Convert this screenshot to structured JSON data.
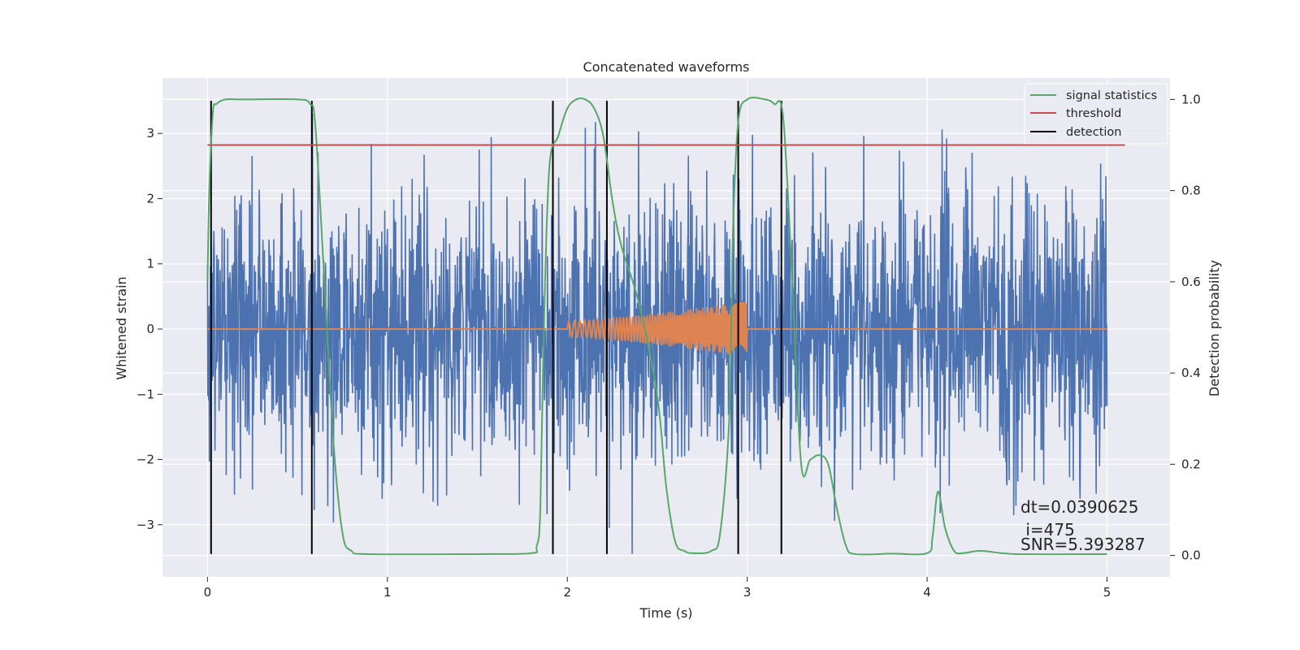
{
  "chart_data": {
    "type": "line",
    "title": "Concatenated waveforms",
    "xlabel": "Time (s)",
    "ylabel_left": "Whitened strain",
    "ylabel_right": "Detection probability",
    "xlim": [
      -0.25,
      5.35
    ],
    "ylim_left": [
      -3.8,
      3.85
    ],
    "ylim_right": [
      -0.047,
      1.047
    ],
    "x_ticks": [
      0,
      1,
      2,
      3,
      4,
      5
    ],
    "y_left_ticks": [
      -3,
      -2,
      -1,
      0,
      1,
      2,
      3
    ],
    "y_right_ticks": [
      0.0,
      0.2,
      0.4,
      0.6,
      0.8,
      1.0
    ],
    "y_right_tick_labels": [
      "0.0",
      "0.2",
      "0.4",
      "0.6",
      "0.8",
      "1.0"
    ],
    "grid": true,
    "legend_position": "top-right",
    "colors": {
      "background": "#eaeaf2",
      "grid": "#ffffff",
      "strain": "#4c72b0",
      "template": "#dd8452",
      "signal_statistics": "#55a868",
      "threshold": "#c44e52",
      "detection": "#000000"
    },
    "series": [
      {
        "name": "",
        "axis": "left",
        "kind": "whitened_strain_noise",
        "x_range": [
          0,
          5
        ],
        "amplitude_sigma": 1.05,
        "peak_max": 3.3,
        "peak_min": -3.45
      },
      {
        "name": "",
        "axis": "left",
        "kind": "injected_chirp",
        "x_range": [
          0,
          5
        ],
        "chirp_start": 2.0,
        "chirp_end": 3.0,
        "amplitude_start": 0.12,
        "amplitude_end": 0.43
      },
      {
        "name": "signal statistics",
        "axis": "right",
        "x": [
          0.0,
          0.01,
          0.03,
          0.05,
          0.1,
          0.2,
          0.5,
          0.57,
          0.6,
          0.65,
          0.7,
          0.75,
          0.8,
          0.9,
          1.5,
          1.8,
          1.83,
          1.85,
          1.87,
          1.9,
          1.95,
          2.0,
          2.05,
          2.1,
          2.15,
          2.2,
          2.25,
          2.3,
          2.4,
          2.5,
          2.55,
          2.6,
          2.65,
          2.7,
          2.8,
          2.85,
          2.9,
          2.92,
          2.95,
          3.0,
          3.1,
          3.15,
          3.2,
          3.25,
          3.3,
          3.35,
          3.4,
          3.45,
          3.5,
          3.55,
          3.6,
          3.8,
          4.0,
          4.03,
          4.06,
          4.1,
          4.15,
          4.2,
          4.3,
          4.5,
          5.0
        ],
        "values": [
          0.6,
          0.8,
          0.97,
          0.99,
          1.0,
          1.0,
          1.0,
          0.99,
          0.94,
          0.6,
          0.25,
          0.05,
          0.01,
          0.003,
          0.003,
          0.005,
          0.02,
          0.1,
          0.5,
          0.85,
          0.92,
          0.98,
          1.0,
          1.0,
          0.98,
          0.92,
          0.78,
          0.68,
          0.55,
          0.35,
          0.15,
          0.03,
          0.01,
          0.005,
          0.01,
          0.05,
          0.3,
          0.7,
          0.95,
          1.0,
          1.0,
          0.99,
          0.96,
          0.6,
          0.2,
          0.21,
          0.22,
          0.2,
          0.1,
          0.02,
          0.003,
          0.004,
          0.005,
          0.04,
          0.14,
          0.06,
          0.01,
          0.005,
          0.01,
          0.003,
          0.003
        ]
      },
      {
        "name": "threshold",
        "axis": "right",
        "x": [
          0,
          5.1
        ],
        "values": [
          0.9,
          0.9
        ]
      },
      {
        "name": "detection",
        "axis": "left",
        "kind": "vertical_lines",
        "x": [
          0.02,
          0.58,
          1.92,
          2.22,
          2.95,
          3.19
        ],
        "y_range": [
          -3.45,
          3.5
        ]
      }
    ],
    "annotations": [
      "dt=0.0390625",
      " i=475",
      "SNR=5.393287"
    ]
  }
}
